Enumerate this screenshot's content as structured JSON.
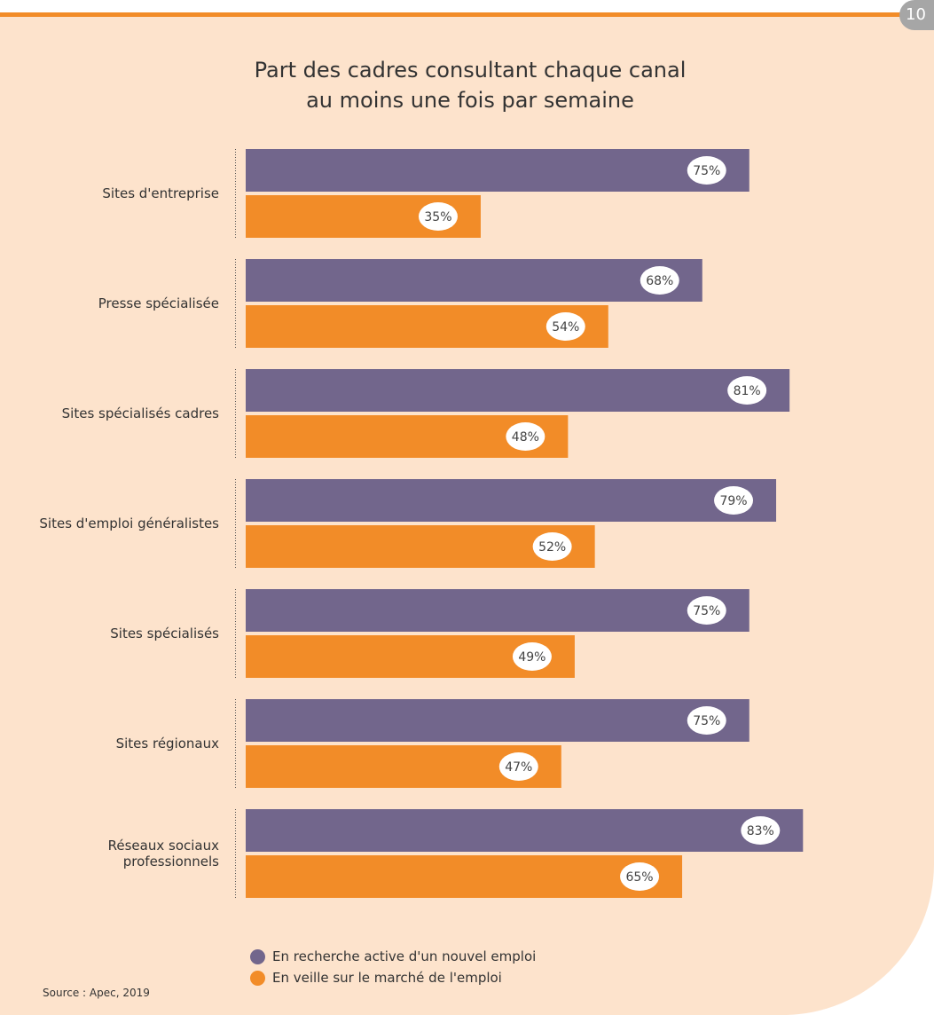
{
  "page_number": "10",
  "source": "Source : Apec, 2019",
  "colors": {
    "series1": "#72668c",
    "series2": "#f28c28",
    "background": "#fde3cc"
  },
  "chart_data": {
    "type": "bar",
    "orientation": "horizontal",
    "title_lines": [
      "Part des cadres consultant chaque canal",
      "au moins une fois par semaine"
    ],
    "categories": [
      [
        "Sites d'entreprise"
      ],
      [
        "Presse spécialisée"
      ],
      [
        "Sites spécialisés cadres"
      ],
      [
        "Sites d'emploi généralistes"
      ],
      [
        "Sites spécialisés"
      ],
      [
        "Sites régionaux"
      ],
      [
        "Réseaux sociaux",
        "professionnels"
      ]
    ],
    "series": [
      {
        "name": "En recherche active d'un nouvel emploi",
        "values": [
          75,
          68,
          81,
          79,
          75,
          75,
          83
        ]
      },
      {
        "name": "En veille sur le marché de l'emploi",
        "values": [
          35,
          54,
          48,
          52,
          49,
          47,
          65
        ]
      }
    ],
    "value_suffix": "%",
    "xlim": [
      0,
      100
    ],
    "grid": false,
    "legend_position": "bottom"
  }
}
